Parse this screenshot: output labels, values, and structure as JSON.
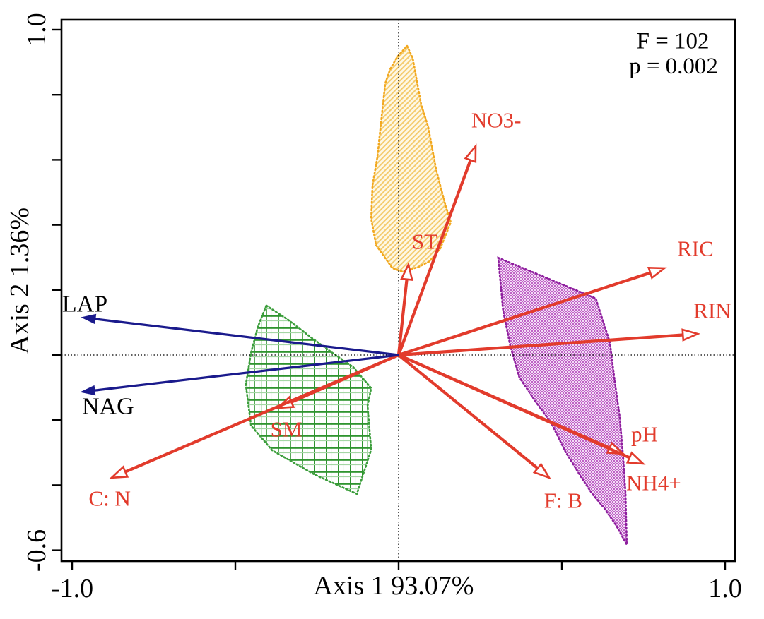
{
  "figure": {
    "background": "#FFFFFF",
    "frame_color": "#000000",
    "stats_box": {
      "line1": "F = 102",
      "line2": "p = 0.002"
    }
  },
  "chart_data": {
    "type": "scatter",
    "subtype": "ordination-biplot",
    "title": "",
    "xlabel": "Axis 1 93.07%",
    "ylabel": "Axis 2 1.36%",
    "xlim": [
      -1.03,
      1.03
    ],
    "ylim": [
      -0.63,
      1.03
    ],
    "x_ticks": [
      -1.0,
      -0.5,
      0.0,
      0.5,
      1.0
    ],
    "x_tick_labels": [
      "-1.0",
      "",
      "",
      "",
      "1.0"
    ],
    "y_ticks": [
      1.0,
      0.8,
      0.6,
      0.4,
      0.2,
      0.0,
      -0.2,
      -0.4,
      -0.6
    ],
    "y_tick_labels": [
      "1.0",
      "",
      "",
      "",
      "",
      "",
      "",
      "",
      "-0.6"
    ],
    "grid": {
      "x_zero_line": true,
      "y_zero_line": true,
      "style": "dotted",
      "color": "#000000"
    },
    "legend_position": "none",
    "annotations": [
      {
        "text": "F = 102",
        "x": 0.84,
        "y": 0.943,
        "color": "#000000"
      },
      {
        "text": "p = 0.002",
        "x": 0.842,
        "y": 0.866,
        "color": "#000000"
      }
    ],
    "vector_groups": {
      "red": {
        "arrow_color": "#E23B2C",
        "label_color": "#E23B2C",
        "head_style": "open",
        "shaft_width": 4.2
      },
      "blue": {
        "arrow_color": "#1A1A8C",
        "label_color": "#000000",
        "head_style": "filled",
        "shaft_width": 3.2
      }
    },
    "vectors": [
      {
        "label": "NO3-",
        "x": 0.236,
        "y": 0.642,
        "label_x": 0.299,
        "label_y": 0.722,
        "group": "red"
      },
      {
        "label": "ST",
        "x": 0.03,
        "y": 0.278,
        "label_x": 0.08,
        "label_y": 0.349,
        "group": "red"
      },
      {
        "label": "RIC",
        "x": 0.814,
        "y": 0.267,
        "label_x": 0.909,
        "label_y": 0.328,
        "group": "red"
      },
      {
        "label": "RIN",
        "x": 0.916,
        "y": 0.065,
        "label_x": 0.961,
        "label_y": 0.137,
        "group": "red"
      },
      {
        "label": "pH",
        "x": 0.688,
        "y": -0.304,
        "label_x": 0.753,
        "label_y": -0.243,
        "group": "red"
      },
      {
        "label": "NH4+",
        "x": 0.749,
        "y": -0.334,
        "label_x": 0.781,
        "label_y": -0.393,
        "group": "red"
      },
      {
        "label": "F: B",
        "x": 0.461,
        "y": -0.377,
        "label_x": 0.504,
        "label_y": -0.447,
        "group": "red"
      },
      {
        "label": "SM",
        "x": -0.37,
        "y": -0.163,
        "label_x": -0.344,
        "label_y": -0.228,
        "group": "red"
      },
      {
        "label": "C: N",
        "x": -0.879,
        "y": -0.377,
        "label_x": -0.885,
        "label_y": -0.44,
        "group": "red"
      },
      {
        "label": "LAP",
        "x": -0.965,
        "y": 0.115,
        "label_x": -0.961,
        "label_y": 0.156,
        "group": "blue"
      },
      {
        "label": "NAG",
        "x": -0.967,
        "y": -0.113,
        "label_x": -0.89,
        "label_y": -0.158,
        "group": "blue"
      }
    ],
    "hulls": [
      {
        "name": "yellow-group-hull",
        "border_color": "#F2A81F",
        "fill_bg": "#FEF8E6",
        "fill_fg": "#F2C45C",
        "pattern": "diagonal",
        "points": [
          [
            0.026,
            0.95
          ],
          [
            0.043,
            0.913
          ],
          [
            0.069,
            0.77
          ],
          [
            0.091,
            0.7
          ],
          [
            0.115,
            0.57
          ],
          [
            0.143,
            0.462
          ],
          [
            0.16,
            0.408
          ],
          [
            0.128,
            0.328
          ],
          [
            0.095,
            0.288
          ],
          [
            0.061,
            0.271
          ],
          [
            0.013,
            0.256
          ],
          [
            -0.019,
            0.267
          ],
          [
            -0.069,
            0.338
          ],
          [
            -0.084,
            0.419
          ],
          [
            -0.08,
            0.521
          ],
          [
            -0.065,
            0.609
          ],
          [
            -0.052,
            0.733
          ],
          [
            -0.041,
            0.835
          ],
          [
            -0.026,
            0.878
          ],
          [
            -0.004,
            0.917
          ]
        ]
      },
      {
        "name": "green-group-hull",
        "border_color": "#3C9E3C",
        "fill_bg": "#FFFFFF",
        "fill_fg": "#2F942F",
        "fill_fg2": "#A5D6A5",
        "pattern": "grid",
        "points": [
          [
            -0.405,
            0.152
          ],
          [
            -0.338,
            0.108
          ],
          [
            -0.268,
            0.054
          ],
          [
            -0.203,
            0.007
          ],
          [
            -0.139,
            -0.037
          ],
          [
            -0.084,
            -0.102
          ],
          [
            -0.095,
            -0.156
          ],
          [
            -0.084,
            -0.291
          ],
          [
            -0.128,
            -0.427
          ],
          [
            -0.258,
            -0.367
          ],
          [
            -0.387,
            -0.293
          ],
          [
            -0.452,
            -0.217
          ],
          [
            -0.468,
            -0.091
          ],
          [
            -0.452,
            0.007
          ],
          [
            -0.431,
            0.087
          ]
        ]
      },
      {
        "name": "purple-group-hull",
        "border_color": "#8E1F9E",
        "fill_bg": "#F2DCF5",
        "fill_fg": "#BF63C6",
        "pattern": "checker",
        "points": [
          [
            0.305,
            0.299
          ],
          [
            0.604,
            0.174
          ],
          [
            0.647,
            0.039
          ],
          [
            0.662,
            -0.08
          ],
          [
            0.677,
            -0.189
          ],
          [
            0.688,
            -0.319
          ],
          [
            0.695,
            -0.427
          ],
          [
            0.699,
            -0.583
          ],
          [
            0.667,
            -0.525
          ],
          [
            0.63,
            -0.471
          ],
          [
            0.593,
            -0.427
          ],
          [
            0.554,
            -0.367
          ],
          [
            0.511,
            -0.297
          ],
          [
            0.468,
            -0.21
          ],
          [
            0.418,
            -0.141
          ],
          [
            0.37,
            -0.069
          ],
          [
            0.342,
            0.028
          ],
          [
            0.32,
            0.137
          ]
        ]
      }
    ]
  }
}
